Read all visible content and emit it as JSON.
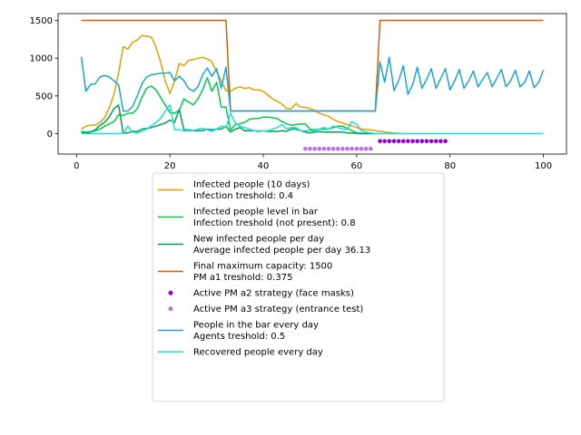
{
  "chart_data": {
    "type": "line",
    "xlim": [
      -3.95,
      104.95
    ],
    "ylim": [
      -270,
      1590
    ],
    "x_ticks": [
      0,
      20,
      40,
      60,
      80,
      100
    ],
    "y_ticks": [
      0,
      500,
      1000,
      1500
    ],
    "grid": false,
    "legend_placement": "below",
    "series": [
      {
        "name": "Infected people (10 days)",
        "name_line2": "Infection treshold: 0.4",
        "kind": "line",
        "color": "#e69f00",
        "x": [
          1,
          2,
          3,
          4,
          5,
          6,
          7,
          8,
          9,
          10,
          11,
          12,
          13,
          14,
          15,
          16,
          17,
          18,
          19,
          20,
          21,
          22,
          23,
          24,
          25,
          26,
          27,
          28,
          29,
          30,
          31,
          32,
          33,
          34,
          35,
          36,
          37,
          38,
          39,
          40,
          41,
          42,
          43,
          44,
          45,
          46,
          47,
          48,
          49,
          50,
          51,
          52,
          53,
          54,
          55,
          56,
          57,
          58,
          59,
          60,
          61,
          62,
          63,
          64,
          65,
          66,
          67,
          68,
          69,
          70
        ],
        "y": [
          60,
          100,
          110,
          110,
          150,
          210,
          340,
          520,
          800,
          1150,
          1120,
          1210,
          1240,
          1300,
          1290,
          1280,
          1150,
          950,
          700,
          530,
          700,
          930,
          900,
          970,
          980,
          1000,
          1010,
          990,
          950,
          820,
          700,
          570,
          560,
          600,
          620,
          600,
          610,
          580,
          580,
          560,
          510,
          460,
          430,
          390,
          330,
          330,
          400,
          350,
          350,
          330,
          310,
          270,
          250,
          230,
          190,
          160,
          140,
          120,
          100,
          80,
          60,
          55,
          50,
          40,
          30,
          20,
          15,
          10,
          5,
          0
        ]
      },
      {
        "name": "Infected people level in bar",
        "name_line2": "Infection treshold (not present): 0.8",
        "kind": "line",
        "color": "#00cc44",
        "x": [
          1,
          2,
          3,
          4,
          5,
          6,
          7,
          8,
          9,
          10,
          11,
          12,
          13,
          14,
          15,
          16,
          17,
          18,
          19,
          20,
          21,
          22,
          23,
          24,
          25,
          26,
          27,
          28,
          29,
          30,
          31,
          32,
          33,
          34,
          35,
          36,
          37,
          38,
          39,
          40,
          41,
          42,
          43,
          44,
          45,
          46,
          47,
          48,
          49,
          50,
          51,
          52,
          53,
          54,
          55,
          56,
          57,
          58,
          59,
          60,
          61,
          62,
          63,
          64
        ],
        "y": [
          30,
          20,
          25,
          40,
          60,
          100,
          130,
          160,
          250,
          240,
          270,
          270,
          330,
          480,
          600,
          630,
          580,
          480,
          380,
          280,
          270,
          310,
          460,
          420,
          380,
          460,
          580,
          740,
          560,
          680,
          350,
          350,
          50,
          120,
          130,
          150,
          190,
          200,
          200,
          220,
          220,
          210,
          200,
          160,
          130,
          110,
          120,
          130,
          130,
          60,
          50,
          60,
          60,
          60,
          80,
          100,
          100,
          70,
          40,
          10,
          5,
          5,
          5,
          0
        ]
      },
      {
        "name": "New infected people per day",
        "name_line2": "Average infected people per day 36.13",
        "kind": "line",
        "color": "#00a050",
        "x": [
          1,
          2,
          3,
          4,
          5,
          6,
          7,
          8,
          9,
          10,
          11,
          12,
          13,
          14,
          15,
          16,
          17,
          18,
          19,
          20,
          21,
          22,
          23,
          24,
          25,
          26,
          27,
          28,
          29,
          30,
          31,
          32,
          33,
          34,
          35,
          36,
          37,
          38,
          39,
          40,
          41,
          42,
          43,
          44,
          45,
          46,
          47,
          48,
          49,
          50,
          51,
          52,
          53,
          54,
          55,
          56,
          57,
          58,
          59,
          60,
          61,
          62,
          63,
          64
        ],
        "y": [
          20,
          10,
          20,
          50,
          110,
          150,
          220,
          330,
          380,
          10,
          10,
          30,
          30,
          60,
          70,
          80,
          100,
          120,
          140,
          180,
          150,
          320,
          50,
          50,
          40,
          40,
          40,
          60,
          50,
          60,
          60,
          100,
          20,
          60,
          80,
          40,
          40,
          40,
          30,
          40,
          30,
          30,
          30,
          40,
          30,
          60,
          60,
          40,
          20,
          10,
          20,
          30,
          20,
          20,
          20,
          20,
          20,
          10,
          10,
          5,
          0,
          0,
          0,
          0
        ]
      },
      {
        "name": "Final maximum capacity: 1500",
        "name_line2": "PM a1 treshold: 0.375",
        "kind": "line",
        "color": "#d95f02",
        "x": [
          1,
          32,
          33,
          64,
          65,
          100
        ],
        "y": [
          1500,
          1500,
          300,
          300,
          1500,
          1500
        ]
      },
      {
        "name": "Active PM a2 strategy (face masks)",
        "name_line2": "",
        "kind": "scatter",
        "color": "#9400d3",
        "x": [
          65,
          66,
          67,
          68,
          69,
          70,
          71,
          72,
          73,
          74,
          75,
          76,
          77,
          78,
          79
        ],
        "y": [
          -100,
          -100,
          -100,
          -100,
          -100,
          -100,
          -100,
          -100,
          -100,
          -100,
          -100,
          -100,
          -100,
          -100,
          -100
        ]
      },
      {
        "name": "Active PM a3 strategy (entrance test)",
        "name_line2": "",
        "kind": "scatter",
        "color": "#c070e0",
        "x": [
          49,
          50,
          51,
          52,
          53,
          54,
          55,
          56,
          57,
          58,
          59,
          60,
          61,
          62,
          63
        ],
        "y": [
          -200,
          -200,
          -200,
          -200,
          -200,
          -200,
          -200,
          -200,
          -200,
          -200,
          -200,
          -200,
          -200,
          -200,
          -200
        ]
      },
      {
        "name": "People in the bar every day",
        "name_line2": "Agents treshold: 0.5",
        "kind": "line",
        "color": "#1aa5d8",
        "x": [
          1,
          2,
          3,
          4,
          5,
          6,
          7,
          8,
          9,
          10,
          11,
          12,
          13,
          14,
          15,
          16,
          17,
          18,
          19,
          20,
          21,
          22,
          23,
          24,
          25,
          26,
          27,
          28,
          29,
          30,
          31,
          32,
          33,
          34,
          35,
          36,
          37,
          38,
          39,
          40,
          41,
          42,
          43,
          44,
          45,
          46,
          47,
          48,
          49,
          50,
          51,
          52,
          53,
          54,
          55,
          56,
          57,
          58,
          59,
          60,
          61,
          62,
          63,
          64,
          65,
          66,
          67,
          68,
          69,
          70,
          71,
          72,
          73,
          74,
          75,
          76,
          77,
          78,
          79,
          80,
          81,
          82,
          83,
          84,
          85,
          86,
          87,
          88,
          89,
          90,
          91,
          92,
          93,
          94,
          95,
          96,
          97,
          98,
          99,
          100
        ],
        "y": [
          1020,
          560,
          650,
          660,
          750,
          770,
          750,
          700,
          650,
          300,
          300,
          360,
          500,
          660,
          750,
          780,
          790,
          800,
          800,
          810,
          700,
          760,
          700,
          600,
          560,
          620,
          780,
          870,
          760,
          860,
          600,
          880,
          300,
          300,
          300,
          300,
          300,
          300,
          300,
          300,
          300,
          300,
          300,
          300,
          300,
          300,
          300,
          300,
          300,
          300,
          300,
          300,
          300,
          300,
          300,
          300,
          300,
          300,
          300,
          300,
          300,
          300,
          300,
          300,
          950,
          680,
          1010,
          570,
          700,
          900,
          520,
          650,
          880,
          600,
          720,
          860,
          600,
          730,
          860,
          580,
          700,
          850,
          600,
          700,
          830,
          620,
          720,
          810,
          620,
          730,
          850,
          620,
          700,
          840,
          620,
          680,
          830,
          610,
          680,
          840
        ]
      },
      {
        "name": "Recovered people every day",
        "name_line2": "",
        "kind": "line",
        "color": "#17e0e6",
        "x": [
          1,
          2,
          3,
          4,
          5,
          6,
          7,
          8,
          9,
          10,
          11,
          12,
          13,
          14,
          15,
          16,
          17,
          18,
          19,
          20,
          21,
          22,
          23,
          24,
          25,
          26,
          27,
          28,
          29,
          30,
          31,
          32,
          33,
          34,
          35,
          36,
          37,
          38,
          39,
          40,
          41,
          42,
          43,
          44,
          45,
          46,
          47,
          48,
          49,
          50,
          51,
          52,
          53,
          54,
          55,
          56,
          57,
          58,
          59,
          60,
          61,
          62,
          63,
          64,
          65,
          100
        ],
        "y": [
          0,
          0,
          0,
          0,
          0,
          0,
          0,
          0,
          0,
          0,
          100,
          20,
          10,
          30,
          60,
          100,
          150,
          200,
          300,
          380,
          50,
          50,
          40,
          40,
          40,
          60,
          70,
          50,
          30,
          60,
          100,
          80,
          270,
          140,
          100,
          80,
          60,
          40,
          40,
          40,
          40,
          60,
          80,
          120,
          60,
          80,
          80,
          40,
          40,
          40,
          40,
          60,
          80,
          60,
          100,
          80,
          60,
          60,
          160,
          120,
          40,
          20,
          10,
          0,
          0,
          0
        ]
      }
    ]
  }
}
